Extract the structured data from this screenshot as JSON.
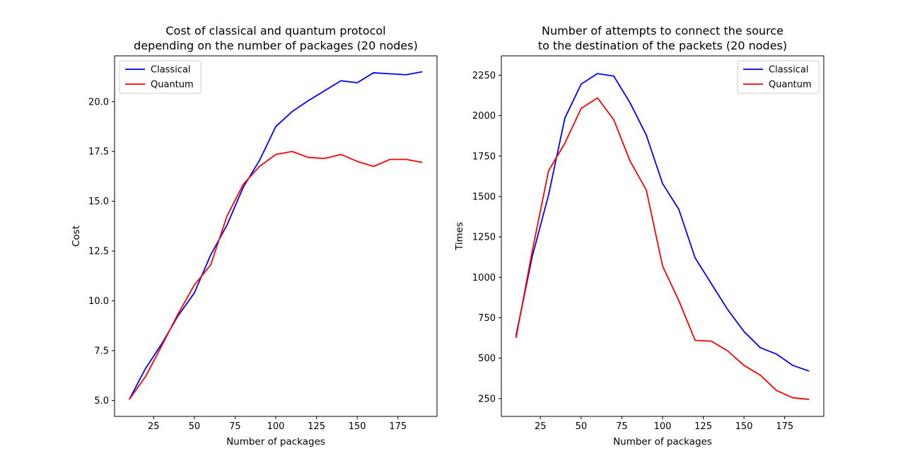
{
  "chart_data": [
    {
      "type": "line",
      "title": "Cost of classical and quantum protocol\ndepending on the number of packages (20 nodes)",
      "xlabel": "Number of packages",
      "ylabel": "Cost",
      "xlim": [
        1,
        199
      ],
      "ylim": [
        4.2,
        22.3
      ],
      "xticks": [
        25,
        50,
        75,
        100,
        125,
        150,
        175
      ],
      "yticks": [
        5.0,
        7.5,
        10.0,
        12.5,
        15.0,
        17.5,
        20.0
      ],
      "ytick_labels": [
        "5.0",
        "7.5",
        "10.0",
        "12.5",
        "15.0",
        "17.5",
        "20.0"
      ],
      "legend_position": "top-left",
      "grid": false,
      "x": [
        10,
        20,
        30,
        40,
        50,
        60,
        70,
        80,
        90,
        100,
        110,
        120,
        130,
        140,
        150,
        160,
        170,
        180,
        190
      ],
      "series": [
        {
          "name": "Classical",
          "color": "#0000ff",
          "values": [
            5.05,
            6.6,
            7.85,
            9.25,
            10.4,
            12.3,
            13.8,
            15.7,
            17.05,
            18.75,
            19.5,
            20.05,
            20.55,
            21.05,
            20.95,
            21.45,
            21.4,
            21.35,
            21.5
          ]
        },
        {
          "name": "Quantum",
          "color": "#ff0000",
          "values": [
            5.05,
            6.2,
            7.75,
            9.35,
            10.8,
            11.8,
            14.25,
            15.85,
            16.75,
            17.35,
            17.5,
            17.2,
            17.15,
            17.35,
            17.0,
            16.75,
            17.1,
            17.1,
            16.95
          ]
        }
      ]
    },
    {
      "type": "line",
      "title": "Number of attempts to connect the source\nto the destination of the packets (20 nodes)",
      "xlabel": "Number of packages",
      "ylabel": "Times",
      "xlim": [
        1,
        199
      ],
      "ylim": [
        140,
        2370
      ],
      "xticks": [
        25,
        50,
        75,
        100,
        125,
        150,
        175
      ],
      "yticks": [
        250,
        500,
        750,
        1000,
        1250,
        1500,
        1750,
        2000,
        2250
      ],
      "ytick_labels": [
        "250",
        "500",
        "750",
        "1000",
        "1250",
        "1500",
        "1750",
        "2000",
        "2250"
      ],
      "legend_position": "top-right",
      "grid": false,
      "x": [
        10,
        20,
        30,
        40,
        50,
        60,
        70,
        80,
        90,
        100,
        110,
        120,
        130,
        140,
        150,
        160,
        170,
        180,
        190
      ],
      "series": [
        {
          "name": "Classical",
          "color": "#0000ff",
          "values": [
            640,
            1130,
            1510,
            1985,
            2195,
            2260,
            2245,
            2080,
            1880,
            1580,
            1420,
            1120,
            960,
            800,
            665,
            565,
            525,
            455,
            420
          ]
        },
        {
          "name": "Quantum",
          "color": "#ff0000",
          "values": [
            625,
            1165,
            1660,
            1830,
            2045,
            2110,
            1975,
            1720,
            1540,
            1070,
            855,
            610,
            605,
            545,
            455,
            395,
            300,
            255,
            245
          ]
        }
      ]
    }
  ]
}
